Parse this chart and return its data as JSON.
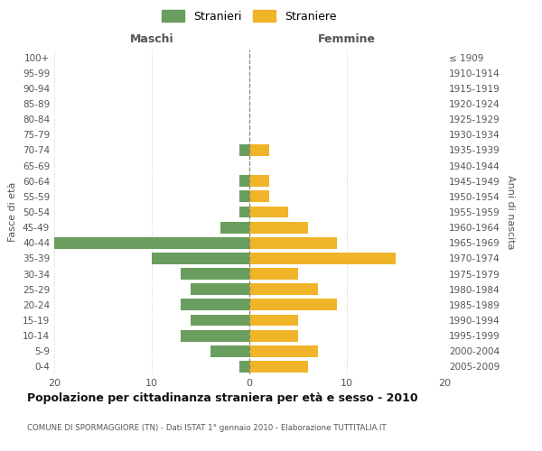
{
  "age_groups": [
    "100+",
    "95-99",
    "90-94",
    "85-89",
    "80-84",
    "75-79",
    "70-74",
    "65-69",
    "60-64",
    "55-59",
    "50-54",
    "45-49",
    "40-44",
    "35-39",
    "30-34",
    "25-29",
    "20-24",
    "15-19",
    "10-14",
    "5-9",
    "0-4"
  ],
  "birth_years": [
    "≤ 1909",
    "1910-1914",
    "1915-1919",
    "1920-1924",
    "1925-1929",
    "1930-1934",
    "1935-1939",
    "1940-1944",
    "1945-1949",
    "1950-1954",
    "1955-1959",
    "1960-1964",
    "1965-1969",
    "1970-1974",
    "1975-1979",
    "1980-1984",
    "1985-1989",
    "1990-1994",
    "1995-1999",
    "2000-2004",
    "2005-2009"
  ],
  "males": [
    0,
    0,
    0,
    0,
    0,
    0,
    1,
    0,
    1,
    1,
    1,
    3,
    20,
    10,
    7,
    6,
    7,
    6,
    7,
    4,
    1
  ],
  "females": [
    0,
    0,
    0,
    0,
    0,
    0,
    2,
    0,
    2,
    2,
    4,
    6,
    9,
    15,
    5,
    7,
    9,
    5,
    5,
    7,
    6
  ],
  "male_color": "#6a9e5e",
  "female_color": "#f0b429",
  "background_color": "#ffffff",
  "grid_color": "#cccccc",
  "center_line_color": "#888866",
  "title": "Popolazione per cittadinanza straniera per età e sesso - 2010",
  "subtitle": "COMUNE DI SPORMAGGIORE (TN) - Dati ISTAT 1° gennaio 2010 - Elaborazione TUTTITALIA.IT",
  "xlabel_left": "Maschi",
  "xlabel_right": "Femmine",
  "ylabel_left": "Fasce di età",
  "ylabel_right": "Anni di nascita",
  "legend_males": "Stranieri",
  "legend_females": "Straniere",
  "xlim": 20,
  "xticks": [
    -20,
    -10,
    0,
    10,
    20
  ],
  "xticklabels": [
    "20",
    "10",
    "0",
    "10",
    "20"
  ]
}
